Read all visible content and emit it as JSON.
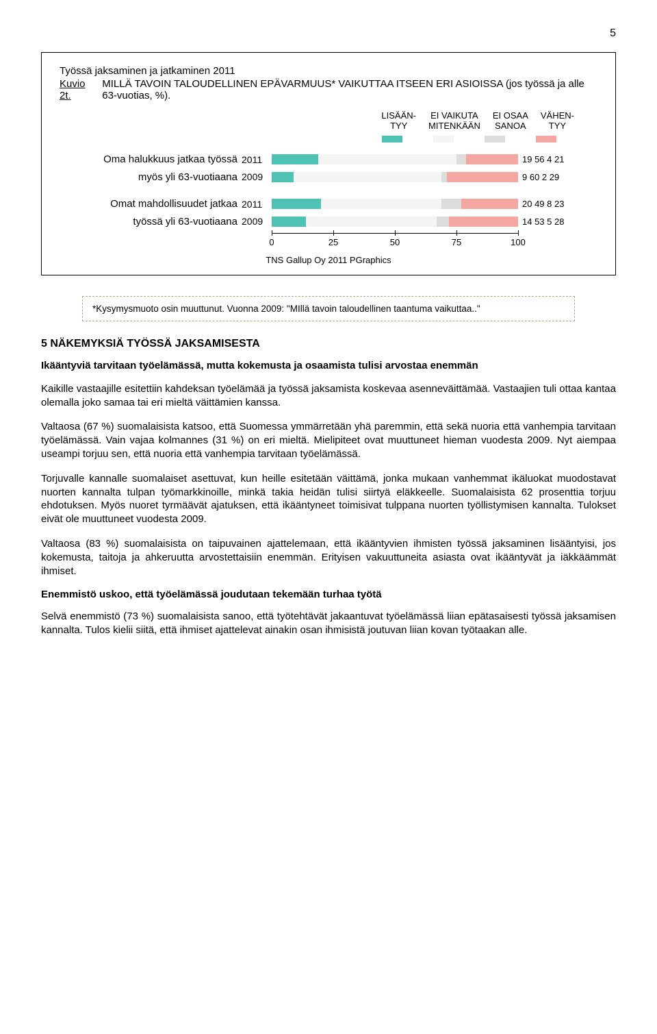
{
  "page_number": "5",
  "chart": {
    "header": "Työssä jaksaminen ja jatkaminen 2011",
    "kuvio": "Kuvio 2t.",
    "title": "MILLÄ TAVOIN TALOUDELLINEN EPÄVARMUUS* VAIKUTTAA ITSEEN ERI ASIOISSA (jos työssä ja alle 63-vuotias, %).",
    "legend": [
      {
        "label_line1": "LISÄÄN-",
        "label_line2": "TYY",
        "color": "#4fc3b3"
      },
      {
        "label_line1": "EI VAIKUTA",
        "label_line2": "MITENKÄÄN",
        "color": "#f4f4f4"
      },
      {
        "label_line1": "EI OSAA",
        "label_line2": "SANOA",
        "color": "#dcdcdc"
      },
      {
        "label_line1": "VÄHEN-",
        "label_line2": "TYY",
        "color": "#f4a7a0"
      }
    ],
    "groups": [
      {
        "label": "Oma halukkuus jatkaa työssä myös yli 63-vuotiaana",
        "rows": [
          {
            "year": "2011",
            "vals": [
              19,
              56,
              4,
              21
            ]
          },
          {
            "year": "2009",
            "vals": [
              9,
              60,
              2,
              29
            ]
          }
        ]
      },
      {
        "label": "Omat mahdollisuudet jatkaa työssä yli 63-vuotiaana",
        "rows": [
          {
            "year": "2011",
            "vals": [
              20,
              49,
              8,
              23
            ]
          },
          {
            "year": "2009",
            "vals": [
              14,
              53,
              5,
              28
            ]
          }
        ]
      }
    ],
    "axis": {
      "ticks": [
        0,
        25,
        50,
        75,
        100
      ]
    },
    "source": "TNS Gallup Oy  2011  PGraphics"
  },
  "note": "*Kysymysmuoto osin muuttunut. Vuonna 2009: \"MIllä tavoin taloudellinen taantuma vaikuttaa..\"",
  "section_title": "5  NÄKEMYKSIÄ TYÖSSÄ JAKSAMISESTA",
  "intro_bold": "Ikääntyviä tarvitaan työelämässä, mutta kokemusta ja osaamista tulisi arvostaa enemmän",
  "p1": "Kaikille vastaajille esitettiin kahdeksan työelämää ja työssä jaksamista koskevaa asenneväittämää. Vastaajien tuli ottaa kantaa olemalla joko samaa tai eri mieltä väittämien kanssa.",
  "p2": "Valtaosa (67 %) suomalaisista katsoo, että Suomessa ymmärretään yhä paremmin, että sekä nuoria että vanhempia tarvitaan työelämässä. Vain vajaa kolmannes (31 %) on eri mieltä. Mielipiteet ovat muuttuneet hieman vuodesta 2009. Nyt aiempaa useampi torjuu sen, että nuoria että vanhempia tarvitaan työelämässä.",
  "p3": "Torjuvalle kannalle suomalaiset asettuvat, kun heille esitetään väittämä, jonka mukaan vanhemmat ikäluokat muodostavat nuorten kannalta tulpan työmarkkinoille, minkä takia heidän tulisi siirtyä eläkkeelle. Suomalaisista 62 prosenttia torjuu ehdotuksen. Myös nuoret tyrmäävät ajatuksen, että ikääntyneet toimisivat tulppana nuorten työllistymisen kannalta. Tulokset eivät ole muuttuneet vuodesta 2009.",
  "p4": "Valtaosa (83 %) suomalaisista on taipuvainen ajattelemaan, että ikääntyvien ihmisten työssä jaksaminen lisääntyisi, jos kokemusta, taitoja ja ahkeruutta arvostettaisiin enemmän. Erityisen vakuuttuneita asiasta ovat ikääntyvät ja iäkkäämmät ihmiset.",
  "sub_heading": "Enemmistö uskoo, että työelämässä joudutaan tekemään turhaa työtä",
  "p5": "Selvä enemmistö (73 %) suomalaisista sanoo, että työtehtävät jakaantuvat työelämässä liian epätasaisesti työssä jaksamisen kannalta. Tulos kielii siitä, että ihmiset ajattelevat ainakin osan ihmisistä joutuvan liian kovan työtaakan alle."
}
